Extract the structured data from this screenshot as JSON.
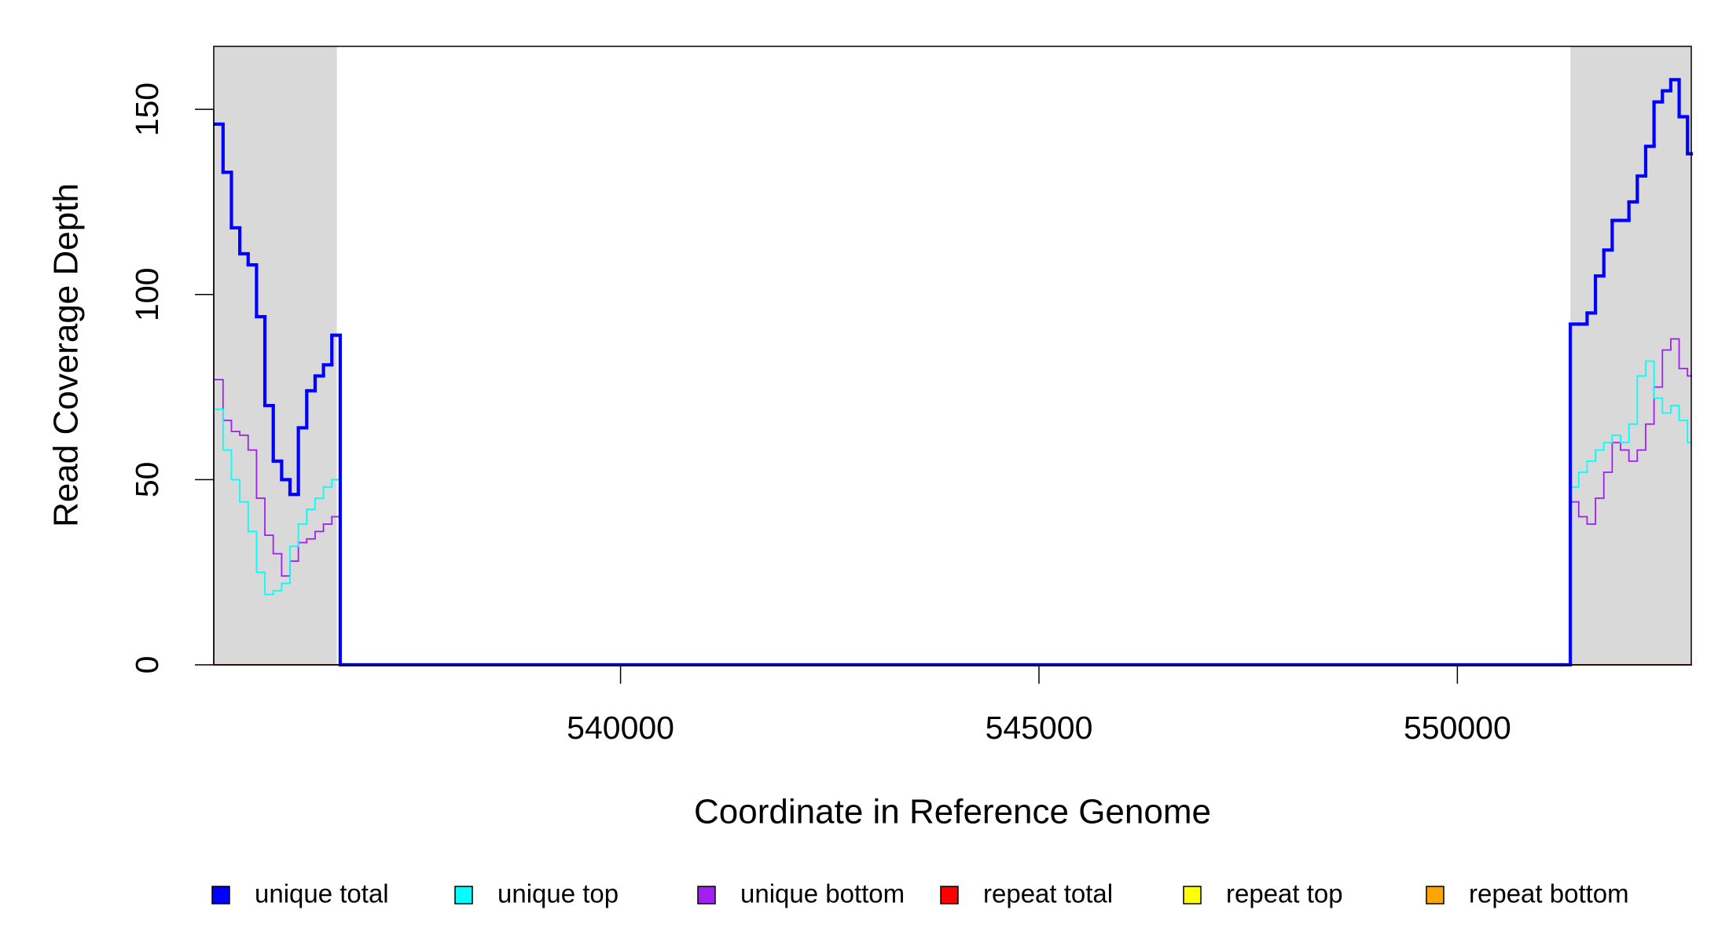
{
  "chart_data": {
    "type": "step",
    "xlabel": "Coordinate in Reference Genome",
    "ylabel": "Read Coverage Depth",
    "x": [
      535150,
      535250,
      535350,
      535450,
      535550,
      535650,
      535750,
      535850,
      535950,
      536050,
      536150,
      536250,
      536350,
      536450,
      536550,
      536650,
      551250,
      551350,
      551450,
      551550,
      551650,
      551750,
      551850,
      551950,
      552050,
      552150,
      552250,
      552350,
      552450,
      552550,
      552650,
      552750
    ],
    "series": [
      {
        "name": "unique total",
        "color": "#0000ff",
        "values": [
          146,
          133,
          118,
          111,
          108,
          94,
          70,
          55,
          50,
          46,
          64,
          74,
          78,
          81,
          89,
          0,
          0,
          92,
          92,
          95,
          105,
          112,
          120,
          120,
          125,
          132,
          140,
          152,
          155,
          158,
          148,
          138
        ]
      },
      {
        "name": "unique top",
        "color": "#00ffff",
        "values": [
          69,
          58,
          50,
          44,
          36,
          25,
          19,
          20,
          22,
          32,
          38,
          42,
          45,
          48,
          50,
          0,
          0,
          48,
          52,
          55,
          58,
          60,
          62,
          60,
          65,
          78,
          82,
          72,
          68,
          70,
          66,
          60
        ]
      },
      {
        "name": "unique bottom",
        "color": "#a020f0",
        "values": [
          77,
          66,
          63,
          62,
          58,
          45,
          35,
          30,
          24,
          28,
          33,
          34,
          36,
          38,
          40,
          0,
          0,
          44,
          40,
          38,
          45,
          52,
          60,
          58,
          55,
          58,
          65,
          75,
          85,
          88,
          80,
          78
        ]
      },
      {
        "name": "repeat total",
        "color": "#ff0000",
        "values": [
          0,
          0,
          0,
          0,
          0,
          0,
          0,
          0,
          0,
          0,
          0,
          0,
          0,
          0,
          0,
          0,
          0,
          0,
          0,
          0,
          0,
          0,
          0,
          0,
          0,
          0,
          0,
          0,
          0,
          0,
          0,
          0
        ]
      },
      {
        "name": "repeat top",
        "color": "#ffff00",
        "values": [
          0,
          0,
          0,
          0,
          0,
          0,
          0,
          0,
          0,
          0,
          0,
          0,
          0,
          0,
          0,
          0,
          0,
          0,
          0,
          0,
          0,
          0,
          0,
          0,
          0,
          0,
          0,
          0,
          0,
          0,
          0,
          0
        ]
      },
      {
        "name": "repeat bottom",
        "color": "#ffa500",
        "values": [
          0,
          0,
          0,
          0,
          0,
          0,
          0,
          0,
          0,
          0,
          0,
          0,
          0,
          0,
          0,
          0,
          0,
          0,
          0,
          0,
          0,
          0,
          0,
          0,
          0,
          0,
          0,
          0,
          0,
          0,
          0,
          0
        ]
      }
    ],
    "highlight_ranges": [
      [
        535139,
        536610
      ],
      [
        551350,
        552795
      ]
    ],
    "highlight_color": "#d9d9d9",
    "xlim": [
      535139,
      552795
    ],
    "ylim": [
      0,
      167
    ],
    "xticks": [
      540000,
      545000,
      550000
    ],
    "yticks": [
      0,
      50,
      100,
      150
    ],
    "legend": "bottom"
  }
}
